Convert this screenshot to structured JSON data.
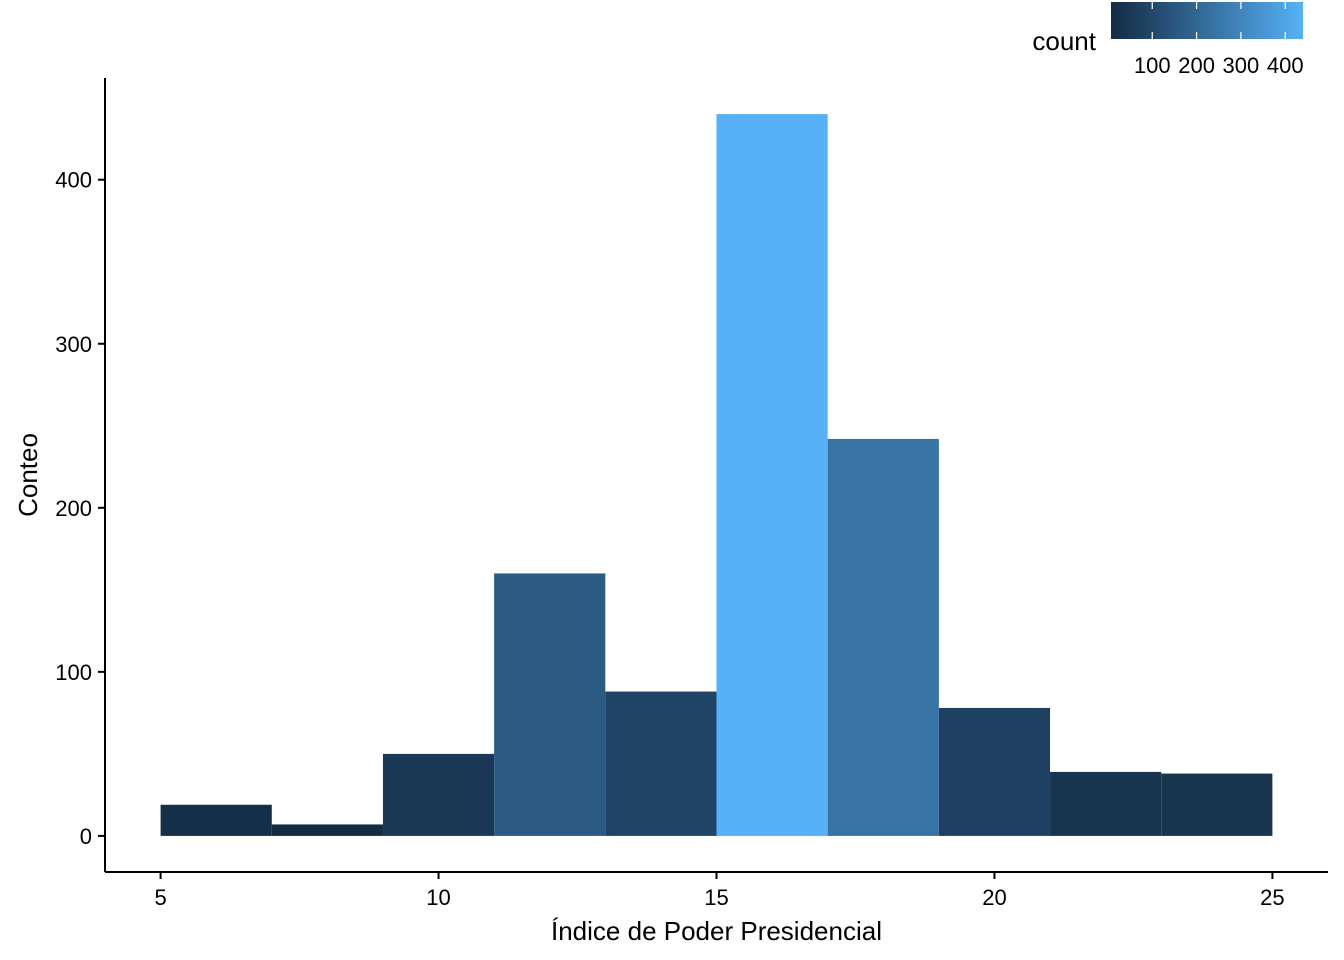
{
  "chart_data": {
    "type": "bar",
    "title": "",
    "xlabel": "Índice de Poder Presidencial",
    "ylabel": "Conteo",
    "bins": [
      {
        "x0": 5,
        "x1": 7,
        "count": 19
      },
      {
        "x0": 7,
        "x1": 9,
        "count": 7
      },
      {
        "x0": 9,
        "x1": 11,
        "count": 50
      },
      {
        "x0": 11,
        "x1": 13,
        "count": 160
      },
      {
        "x0": 13,
        "x1": 15,
        "count": 88
      },
      {
        "x0": 15,
        "x1": 17,
        "count": 440
      },
      {
        "x0": 17,
        "x1": 19,
        "count": 242
      },
      {
        "x0": 19,
        "x1": 21,
        "count": 78
      },
      {
        "x0": 21,
        "x1": 23,
        "count": 39
      },
      {
        "x0": 23,
        "x1": 25,
        "count": 38
      }
    ],
    "xticks": [
      5,
      10,
      15,
      20,
      25
    ],
    "yticks": [
      0,
      100,
      200,
      300,
      400
    ],
    "xlim": [
      4,
      26
    ],
    "ylim": [
      -22,
      462
    ],
    "grid": false,
    "legend": {
      "title": "count",
      "placement": "top-right",
      "type": "colorbar",
      "labels": [
        100,
        200,
        300,
        400
      ],
      "range": [
        7,
        440
      ],
      "color_low": "#132B43",
      "color_high": "#56B1F7"
    }
  }
}
